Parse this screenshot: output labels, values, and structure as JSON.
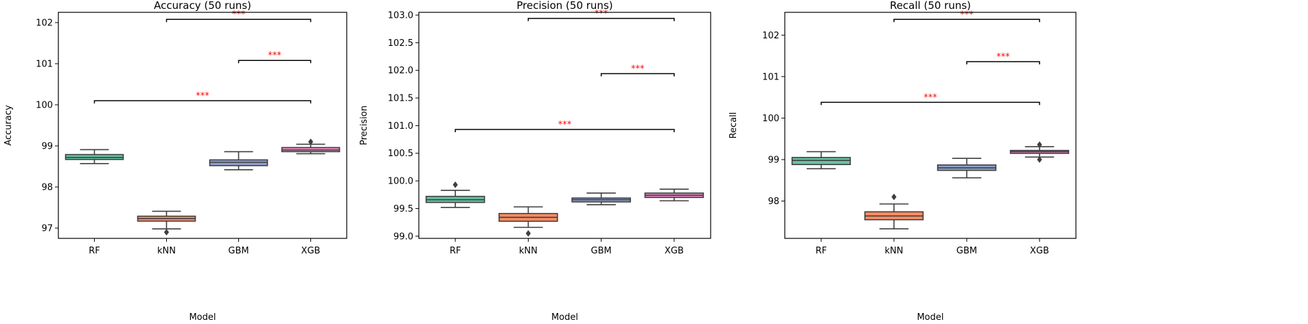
{
  "chart_data": [
    {
      "type": "boxplot",
      "title": "Accuracy (50 runs)",
      "xlabel": "Model",
      "ylabel": "Accuracy",
      "categories": [
        "RF",
        "kNN",
        "GBM",
        "XGB"
      ],
      "ylim": [
        96.75,
        102.25
      ],
      "yticks": [
        "97",
        "98",
        "99",
        "100",
        "101",
        "102"
      ],
      "boxes": [
        {
          "name": "RF",
          "color": "#66c2a5",
          "whislo": 98.57,
          "q1": 98.67,
          "med": 98.72,
          "q3": 98.79,
          "whishi": 98.91,
          "fliers": []
        },
        {
          "name": "kNN",
          "color": "#fc8d62",
          "whislo": 96.98,
          "q1": 97.17,
          "med": 97.23,
          "q3": 97.29,
          "whishi": 97.41,
          "fliers": [
            96.9
          ]
        },
        {
          "name": "GBM",
          "color": "#8da0cb",
          "whislo": 98.42,
          "q1": 98.52,
          "med": 98.6,
          "q3": 98.66,
          "whishi": 98.86,
          "fliers": []
        },
        {
          "name": "XGB",
          "color": "#e78ac3",
          "whislo": 98.81,
          "q1": 98.86,
          "med": 98.9,
          "q3": 98.96,
          "whishi": 99.04,
          "fliers": [
            99.1
          ]
        }
      ],
      "significance": [
        {
          "from": "kNN",
          "to": "XGB",
          "y": 102.08,
          "label": "***"
        },
        {
          "from": "GBM",
          "to": "XGB",
          "y": 101.08,
          "label": "***"
        },
        {
          "from": "RF",
          "to": "XGB",
          "y": 100.1,
          "label": "***"
        }
      ]
    },
    {
      "type": "boxplot",
      "title": "Precision (50 runs)",
      "xlabel": "Model",
      "ylabel": "Precision",
      "categories": [
        "RF",
        "kNN",
        "GBM",
        "XGB"
      ],
      "ylim": [
        98.96,
        103.05
      ],
      "yticks": [
        "99.0",
        "99.5",
        "100.0",
        "100.5",
        "101.0",
        "101.5",
        "102.0",
        "102.5",
        "103.0"
      ],
      "boxes": [
        {
          "name": "RF",
          "color": "#66c2a5",
          "whislo": 99.52,
          "q1": 99.61,
          "med": 99.66,
          "q3": 99.72,
          "whishi": 99.83,
          "fliers": [
            99.93
          ]
        },
        {
          "name": "kNN",
          "color": "#fc8d62",
          "whislo": 99.16,
          "q1": 99.27,
          "med": 99.34,
          "q3": 99.41,
          "whishi": 99.53,
          "fliers": [
            99.05
          ]
        },
        {
          "name": "GBM",
          "color": "#8da0cb",
          "whislo": 99.57,
          "q1": 99.62,
          "med": 99.66,
          "q3": 99.69,
          "whishi": 99.78,
          "fliers": []
        },
        {
          "name": "XGB",
          "color": "#e78ac3",
          "whislo": 99.64,
          "q1": 99.7,
          "med": 99.74,
          "q3": 99.78,
          "whishi": 99.85,
          "fliers": []
        }
      ],
      "significance": [
        {
          "from": "kNN",
          "to": "XGB",
          "y": 102.94,
          "label": "***"
        },
        {
          "from": "GBM",
          "to": "XGB",
          "y": 101.94,
          "label": "***"
        },
        {
          "from": "RF",
          "to": "XGB",
          "y": 100.93,
          "label": "***"
        }
      ]
    },
    {
      "type": "boxplot",
      "title": "Recall (50 runs)",
      "xlabel": "Model",
      "ylabel": "Recall",
      "categories": [
        "RF",
        "kNN",
        "GBM",
        "XGB"
      ],
      "ylim": [
        97.1,
        102.55
      ],
      "yticks": [
        "98",
        "99",
        "100",
        "101",
        "102"
      ],
      "boxes": [
        {
          "name": "RF",
          "color": "#66c2a5",
          "whislo": 98.78,
          "q1": 98.88,
          "med": 98.98,
          "q3": 99.05,
          "whishi": 99.19,
          "fliers": []
        },
        {
          "name": "kNN",
          "color": "#fc8d62",
          "whislo": 97.33,
          "q1": 97.55,
          "med": 97.64,
          "q3": 97.74,
          "whishi": 97.93,
          "fliers": [
            98.1
          ]
        },
        {
          "name": "GBM",
          "color": "#8da0cb",
          "whislo": 98.56,
          "q1": 98.74,
          "med": 98.8,
          "q3": 98.87,
          "whishi": 99.03,
          "fliers": []
        },
        {
          "name": "XGB",
          "color": "#e78ac3",
          "whislo": 99.06,
          "q1": 99.15,
          "med": 99.19,
          "q3": 99.22,
          "whishi": 99.31,
          "fliers": [
            99.0,
            99.36
          ]
        }
      ],
      "significance": [
        {
          "from": "kNN",
          "to": "XGB",
          "y": 102.38,
          "label": "***"
        },
        {
          "from": "GBM",
          "to": "XGB",
          "y": 101.36,
          "label": "***"
        },
        {
          "from": "RF",
          "to": "XGB",
          "y": 100.38,
          "label": "***"
        }
      ]
    }
  ],
  "colors": {
    "box_edge": "#3f3f3f",
    "significance_label": "#ff0000",
    "axes": "#000000"
  }
}
